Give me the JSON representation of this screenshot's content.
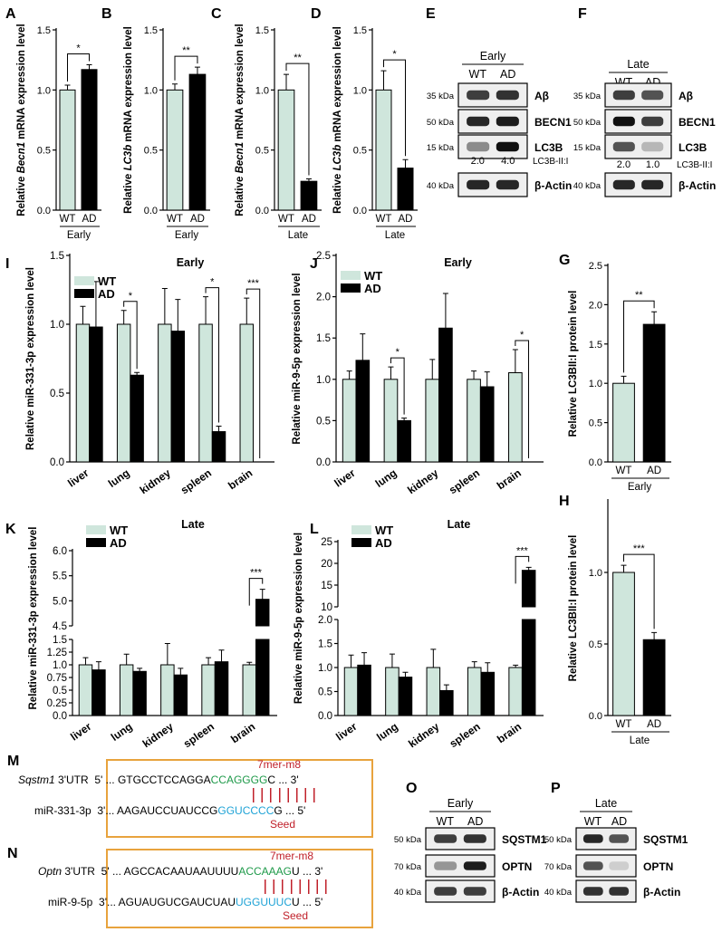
{
  "colors": {
    "wt": "#cfe6dc",
    "ad": "#000000",
    "mer": "#c0202a",
    "green": "#1f9a4a",
    "blue": "#1fa3d6",
    "box": "#e8a33d"
  },
  "panels": {
    "A": {
      "letter": "A",
      "ylabel": [
        "Relative ",
        "Becn1",
        " mRNA expression level"
      ],
      "group": "Early"
    },
    "B": {
      "letter": "B",
      "ylabel": [
        "Relative ",
        "LC3b",
        " mRNA expression level"
      ],
      "group": "Early"
    },
    "C": {
      "letter": "C",
      "ylabel": [
        "Relative ",
        "Becn1",
        " mRNA expression level"
      ],
      "group": "Late"
    },
    "D": {
      "letter": "D",
      "ylabel": [
        "Relative ",
        "LC3b",
        " mRNA expression level"
      ],
      "group": "Late"
    },
    "G": {
      "letter": "G",
      "ylabel": "Relative LC3BII:I protein level",
      "group": "Early"
    },
    "H": {
      "letter": "H",
      "ylabel": "Relative LC3BII:I protein level",
      "group": "Late"
    },
    "I": {
      "letter": "I",
      "ylabel": "Relative miR-331-3p expression level",
      "title": "Early"
    },
    "J": {
      "letter": "J",
      "ylabel": "Relative miR-9-5p expression level",
      "title": "Early"
    },
    "K": {
      "letter": "K",
      "ylabel": "Relative miR-331-3p expression level",
      "title": "Late"
    },
    "L": {
      "letter": "L",
      "ylabel": "Relative miR-9-5p expression level",
      "title": "Late"
    }
  },
  "legend": {
    "wt": "WT",
    "ad": "AD"
  },
  "chart_data": [
    {
      "id": "A",
      "type": "bar",
      "categories": [
        "WT",
        "AD"
      ],
      "values": [
        1.0,
        1.17
      ],
      "errors": [
        0.04,
        0.04
      ],
      "ylim": [
        0,
        1.5
      ],
      "ticks": [
        "0.0",
        "0.5",
        "1.0",
        "1.5"
      ],
      "significance": "*",
      "xlabel": "Early"
    },
    {
      "id": "B",
      "type": "bar",
      "categories": [
        "WT",
        "AD"
      ],
      "values": [
        1.0,
        1.13
      ],
      "errors": [
        0.05,
        0.06
      ],
      "ylim": [
        0,
        1.5
      ],
      "ticks": [
        "0.0",
        "0.5",
        "1.0",
        "1.5"
      ],
      "significance": "**",
      "xlabel": "Early"
    },
    {
      "id": "C",
      "type": "bar",
      "categories": [
        "WT",
        "AD"
      ],
      "values": [
        1.0,
        0.24
      ],
      "errors": [
        0.13,
        0.02
      ],
      "ylim": [
        0,
        1.5
      ],
      "ticks": [
        "0.0",
        "0.5",
        "1.0",
        "1.5"
      ],
      "significance": "**",
      "xlabel": "Late"
    },
    {
      "id": "D",
      "type": "bar",
      "categories": [
        "WT",
        "AD"
      ],
      "values": [
        1.0,
        0.35
      ],
      "errors": [
        0.16,
        0.07
      ],
      "ylim": [
        0,
        1.5
      ],
      "ticks": [
        "0.0",
        "0.5",
        "1.0",
        "1.5"
      ],
      "significance": "*",
      "xlabel": "Late"
    },
    {
      "id": "G",
      "type": "bar",
      "categories": [
        "WT",
        "AD"
      ],
      "values": [
        1.0,
        1.75
      ],
      "errors": [
        0.09,
        0.16
      ],
      "ylim": [
        0,
        2.5
      ],
      "ticks": [
        "0.0",
        "0.5",
        "1.0",
        "1.5",
        "2.0",
        "2.5"
      ],
      "significance": "**",
      "xlabel": "Early"
    },
    {
      "id": "H",
      "type": "bar",
      "categories": [
        "WT",
        "AD"
      ],
      "values": [
        1.0,
        0.53
      ],
      "errors": [
        0.05,
        0.05
      ],
      "ylim": [
        0,
        1.5
      ],
      "ticks": [
        "0.0",
        "0.5",
        "1.0"
      ],
      "significance": "***",
      "xlabel": "Late"
    },
    {
      "id": "I",
      "type": "bar",
      "title": "Early",
      "categories": [
        "liver",
        "lung",
        "kidney",
        "spleen",
        "brain"
      ],
      "series": [
        {
          "name": "WT",
          "values": [
            1.0,
            1.0,
            1.0,
            1.0,
            1.0
          ],
          "errors": [
            0.13,
            0.1,
            0.26,
            0.2,
            0.19
          ]
        },
        {
          "name": "AD",
          "values": [
            0.98,
            0.63,
            0.95,
            0.22,
            0.0
          ],
          "errors": [
            0.33,
            0.02,
            0.23,
            0.04,
            0.0
          ]
        }
      ],
      "ylim": [
        0,
        1.5
      ],
      "ticks": [
        "0.0",
        "0.5",
        "1.0",
        "1.5"
      ],
      "significance": [
        {
          "category": "lung",
          "label": "*"
        },
        {
          "category": "spleen",
          "label": "*"
        },
        {
          "category": "brain",
          "label": "***"
        }
      ]
    },
    {
      "id": "J",
      "type": "bar",
      "title": "Early",
      "categories": [
        "liver",
        "lung",
        "kidney",
        "spleen",
        "brain"
      ],
      "series": [
        {
          "name": "WT",
          "values": [
            1.0,
            1.0,
            1.0,
            1.0,
            1.08
          ],
          "errors": [
            0.1,
            0.15,
            0.24,
            0.1,
            0.28
          ]
        },
        {
          "name": "AD",
          "values": [
            1.23,
            0.5,
            1.62,
            0.91,
            0.0
          ],
          "errors": [
            0.32,
            0.03,
            0.42,
            0.18,
            0.0
          ]
        }
      ],
      "ylim": [
        0,
        2.5
      ],
      "ticks": [
        "0.0",
        "0.5",
        "1.0",
        "1.5",
        "2.0",
        "2.5"
      ],
      "significance": [
        {
          "category": "lung",
          "label": "*"
        },
        {
          "category": "brain",
          "label": "*"
        }
      ]
    },
    {
      "id": "K",
      "type": "bar",
      "title": "Late",
      "categories": [
        "liver",
        "lung",
        "kidney",
        "spleen",
        "brain"
      ],
      "series": [
        {
          "name": "WT",
          "values": [
            1.0,
            1.0,
            1.0,
            1.0,
            1.0
          ],
          "errors": [
            0.14,
            0.21,
            0.42,
            0.14,
            0.05
          ]
        },
        {
          "name": "AD",
          "values": [
            0.9,
            0.87,
            0.8,
            1.06,
            5.03
          ],
          "errors": [
            0.16,
            0.06,
            0.13,
            0.23,
            0.2
          ]
        }
      ],
      "broken_axis": {
        "lower": [
          0,
          1.5
        ],
        "upper": [
          4.5,
          6.0
        ]
      },
      "lower_ticks": [
        "0.0",
        "0.25",
        "0.5",
        "0.75",
        "1.0",
        "1.25",
        "1.5"
      ],
      "upper_ticks": [
        "4.5",
        "5.0",
        "5.5",
        "6.0"
      ],
      "significance": [
        {
          "category": "brain",
          "label": "***"
        }
      ]
    },
    {
      "id": "L",
      "type": "bar",
      "title": "Late",
      "categories": [
        "liver",
        "lung",
        "kidney",
        "spleen",
        "brain"
      ],
      "series": [
        {
          "name": "WT",
          "values": [
            1.0,
            1.0,
            1.0,
            1.0,
            1.0
          ],
          "errors": [
            0.26,
            0.28,
            0.38,
            0.12,
            0.05
          ]
        },
        {
          "name": "AD",
          "values": [
            1.05,
            0.8,
            0.52,
            0.9,
            18.4
          ],
          "errors": [
            0.26,
            0.1,
            0.12,
            0.2,
            0.7
          ]
        }
      ],
      "broken_axis": {
        "lower": [
          0,
          2.0
        ],
        "upper": [
          10,
          25
        ]
      },
      "lower_ticks": [
        "0.0",
        "0.5",
        "1.0",
        "1.5",
        "2.0"
      ],
      "upper_ticks": [
        "10",
        "15",
        "20",
        "25"
      ],
      "significance": [
        {
          "category": "brain",
          "label": "***"
        }
      ]
    }
  ],
  "blots": {
    "E": {
      "letter": "E",
      "title": "Early",
      "lanes": [
        "WT",
        "AD"
      ],
      "rows": [
        {
          "kda": "35 kDa",
          "label": "Aβ"
        },
        {
          "kda": "50 kDa",
          "label": "BECN1"
        },
        {
          "kda": "15 kDa",
          "label": "LC3B"
        },
        {
          "kda": "40 kDa",
          "label": "β-Actin"
        }
      ],
      "ratio_label": "LC3B-II:I",
      "ratios": [
        "2.0",
        "4.0"
      ]
    },
    "F": {
      "letter": "F",
      "title": "Late",
      "lanes": [
        "WT",
        "AD"
      ],
      "rows": [
        {
          "kda": "35 kDa",
          "label": "Aβ"
        },
        {
          "kda": "50 kDa",
          "label": "BECN1"
        },
        {
          "kda": "15 kDa",
          "label": "LC3B"
        },
        {
          "kda": "40 kDa",
          "label": "β-Actin"
        }
      ],
      "ratio_label": "LC3B-II:I",
      "ratios": [
        "2.0",
        "1.0"
      ]
    },
    "O": {
      "letter": "O",
      "title": "Early",
      "lanes": [
        "WT",
        "AD"
      ],
      "rows": [
        {
          "kda": "50 kDa",
          "label": "SQSTM1"
        },
        {
          "kda": "70 kDa",
          "label": "OPTN"
        },
        {
          "kda": "40 kDa",
          "label": "β-Actin"
        }
      ]
    },
    "P": {
      "letter": "P",
      "title": "Late",
      "lanes": [
        "WT",
        "AD"
      ],
      "rows": [
        {
          "kda": "50 kDa",
          "label": "SQSTM1"
        },
        {
          "kda": "70 kDa",
          "label": "OPTN"
        },
        {
          "kda": "40 kDa",
          "label": "β-Actin"
        }
      ]
    }
  },
  "sequences": {
    "M": {
      "letter": "M",
      "mer": "7mer-m8",
      "seed": "Seed",
      "target": {
        "gene": "Sqstm1",
        "suffix": " 3'UTR",
        "prefix": "5' ... GTGCCTCCAGGA",
        "match": "CCAGGGG",
        "tail": "C ... 3'"
      },
      "mirna": {
        "name": "miR-331-3p",
        "prefix": "3'... AAGAUCCUAUCCG",
        "match": "GGUCCCC",
        "tail": "G ... 5'"
      }
    },
    "N": {
      "letter": "N",
      "mer": "7mer-m8",
      "seed": "Seed",
      "target": {
        "gene": "Optn",
        "suffix": " 3'UTR",
        "prefix": "5' ... AGCCACAAUAAUUUU",
        "match": "ACCAAAG",
        "tail": "U ... 3'"
      },
      "mirna": {
        "name": "miR-9-5p",
        "prefix": "3'... AGUAUGUCGAUCUAU",
        "match": "UGGUUUC",
        "tail": "U ... 5'"
      }
    }
  }
}
